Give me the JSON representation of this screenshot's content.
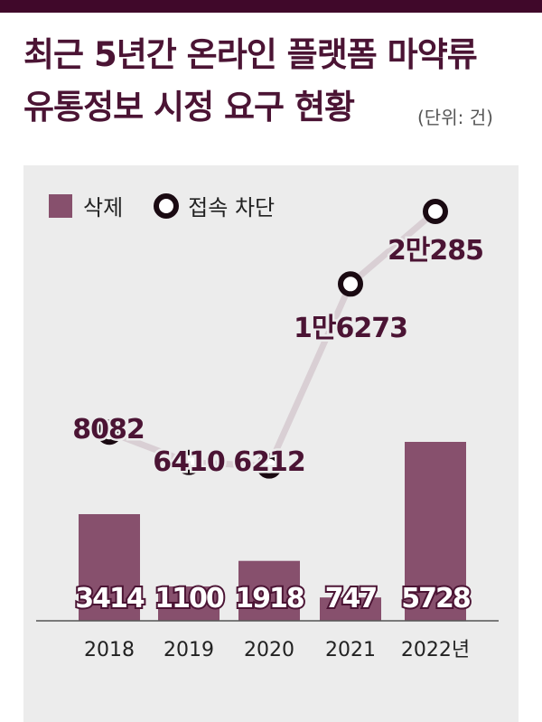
{
  "title_line1": "최근 5년간 온라인 플랫폼 마약류",
  "title_line2": "유통정보 시정 요구 현황",
  "unit": "(단위: 건)",
  "legend": {
    "delete_label": "삭제",
    "block_label": "접속 차단"
  },
  "colors": {
    "bar": "#87506d",
    "line": "#d9cfd4",
    "marker": "#1a0a12",
    "label": "#4b1434",
    "topbar": "#40082a"
  },
  "chart_data": {
    "type": "bar",
    "categories": [
      "2018",
      "2019",
      "2020",
      "2021",
      "2022년"
    ],
    "series": [
      {
        "name": "삭제",
        "type": "bar",
        "values": [
          3414,
          1100,
          1918,
          747,
          5728
        ],
        "labels": [
          "3414",
          "1100",
          "1918",
          "747",
          "5728"
        ]
      },
      {
        "name": "접속 차단",
        "type": "line",
        "values": [
          8082,
          6410,
          6212,
          16273,
          20285
        ],
        "labels": [
          "8082",
          "6410",
          "6212",
          "1만6273",
          "2만285"
        ]
      }
    ]
  }
}
